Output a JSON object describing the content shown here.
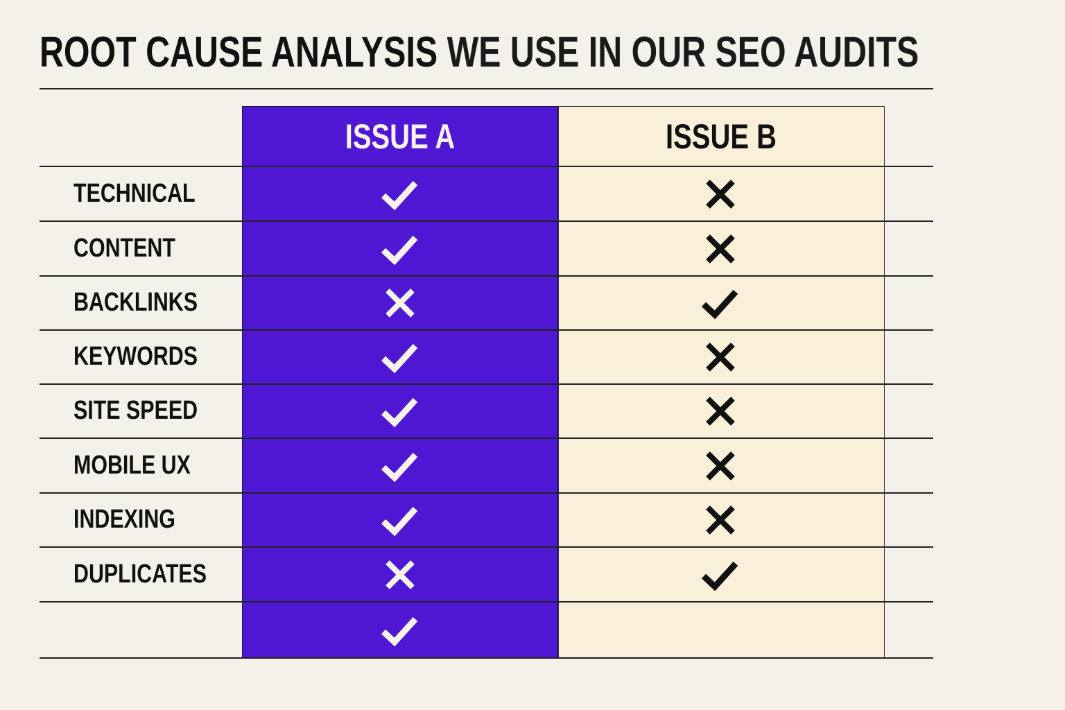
{
  "title": {
    "bold_part": "ROOT CAUSE ANALYSIS",
    "rest": "WE USE IN OUR SEO AUDITS"
  },
  "columns": [
    {
      "label": "ISSUE A",
      "color": "#4f17d3",
      "text_color": "#f7f3ea"
    },
    {
      "label": "ISSUE B",
      "color": "#faf0da",
      "text_color": "#111111"
    }
  ],
  "rows": [
    {
      "label": "TECHNICAL",
      "a": "check",
      "b": "cross"
    },
    {
      "label": "CONTENT",
      "a": "check",
      "b": "cross"
    },
    {
      "label": "BACKLINKS",
      "a": "cross",
      "b": "check"
    },
    {
      "label": "KEYWORDS",
      "a": "check",
      "b": "cross"
    },
    {
      "label": "SITE SPEED",
      "a": "check",
      "b": "cross"
    },
    {
      "label": "MOBILE UX",
      "a": "check",
      "b": "cross"
    },
    {
      "label": "INDEXING",
      "a": "check",
      "b": "cross"
    },
    {
      "label": "DUPLICATES",
      "a": "cross",
      "b": "check"
    },
    {
      "label": "",
      "a": "check",
      "b": ""
    }
  ]
}
